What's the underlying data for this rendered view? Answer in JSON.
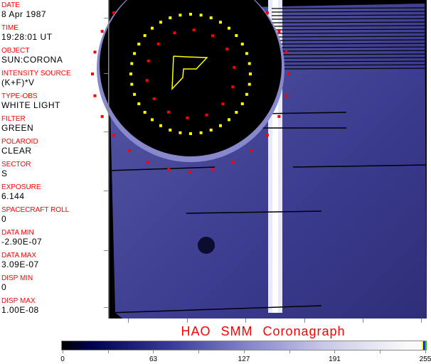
{
  "fields": [
    {
      "label": "DATE",
      "value": "8 Apr 1987"
    },
    {
      "label": "TIME",
      "value": "19:28:01 UT"
    },
    {
      "label": "OBJECT",
      "value": "SUN:CORONA"
    },
    {
      "label": "INTENSITY SOURCE",
      "value": "(K+F)*V"
    },
    {
      "label": "TYPE-OBS",
      "value": "WHITE LIGHT"
    },
    {
      "label": "FILTER",
      "value": "GREEN"
    },
    {
      "label": "POLAROID",
      "value": "CLEAR"
    },
    {
      "label": "SECTOR",
      "value": "S"
    },
    {
      "label": "EXPOSURE",
      "value": "6.144"
    },
    {
      "label": "SPACECRAFT ROLL",
      "value": "0"
    },
    {
      "label": "DATA MIN",
      "value": "-2.90E-07"
    },
    {
      "label": "DATA MAX",
      "value": "3.09E-07"
    },
    {
      "label": "DISP MIN",
      "value": "0"
    },
    {
      "label": "DISP MAX",
      "value": "1.00E-08"
    }
  ],
  "title": "HAO  SMM Coronagraph",
  "colorbar": {
    "ticks": [
      "0",
      "63",
      "127",
      "191",
      "255"
    ],
    "min": 0,
    "max": 255
  },
  "colors": {
    "label": "#ff0000",
    "marker_red": "#ff0000",
    "marker_yellow": "#ffff00",
    "corona": "#3c3c90"
  }
}
